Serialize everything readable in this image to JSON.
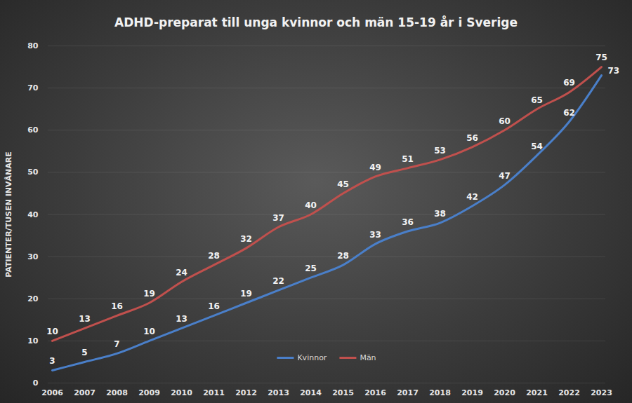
{
  "chart_data": {
    "type": "line",
    "title": "ADHD-preparat till unga kvinnor och män 15-19 år i Sverige",
    "y_label": "PATIENTER/TUSEN INVÅNARE",
    "categories": [
      "2006",
      "2007",
      "2008",
      "2009",
      "2010",
      "2011",
      "2012",
      "2013",
      "2014",
      "2015",
      "2016",
      "2017",
      "2018",
      "2019",
      "2020",
      "2021",
      "2022",
      "2023"
    ],
    "series": [
      {
        "name": "Kvinnor",
        "color": "#4a7fc9",
        "values": [
          3,
          5,
          7,
          10,
          13,
          16,
          19,
          22,
          25,
          28,
          33,
          36,
          38,
          42,
          47,
          54,
          62,
          73
        ]
      },
      {
        "name": "Män",
        "color": "#c0504d",
        "values": [
          10,
          13,
          16,
          19,
          24,
          28,
          32,
          37,
          40,
          45,
          49,
          51,
          53,
          56,
          60,
          65,
          69,
          75
        ]
      }
    ],
    "ylim": [
      0,
      80
    ],
    "yticks": [
      0,
      10,
      20,
      30,
      40,
      50,
      60,
      70,
      80
    ],
    "grid": true,
    "legend": "bottom",
    "data_labels": true
  }
}
